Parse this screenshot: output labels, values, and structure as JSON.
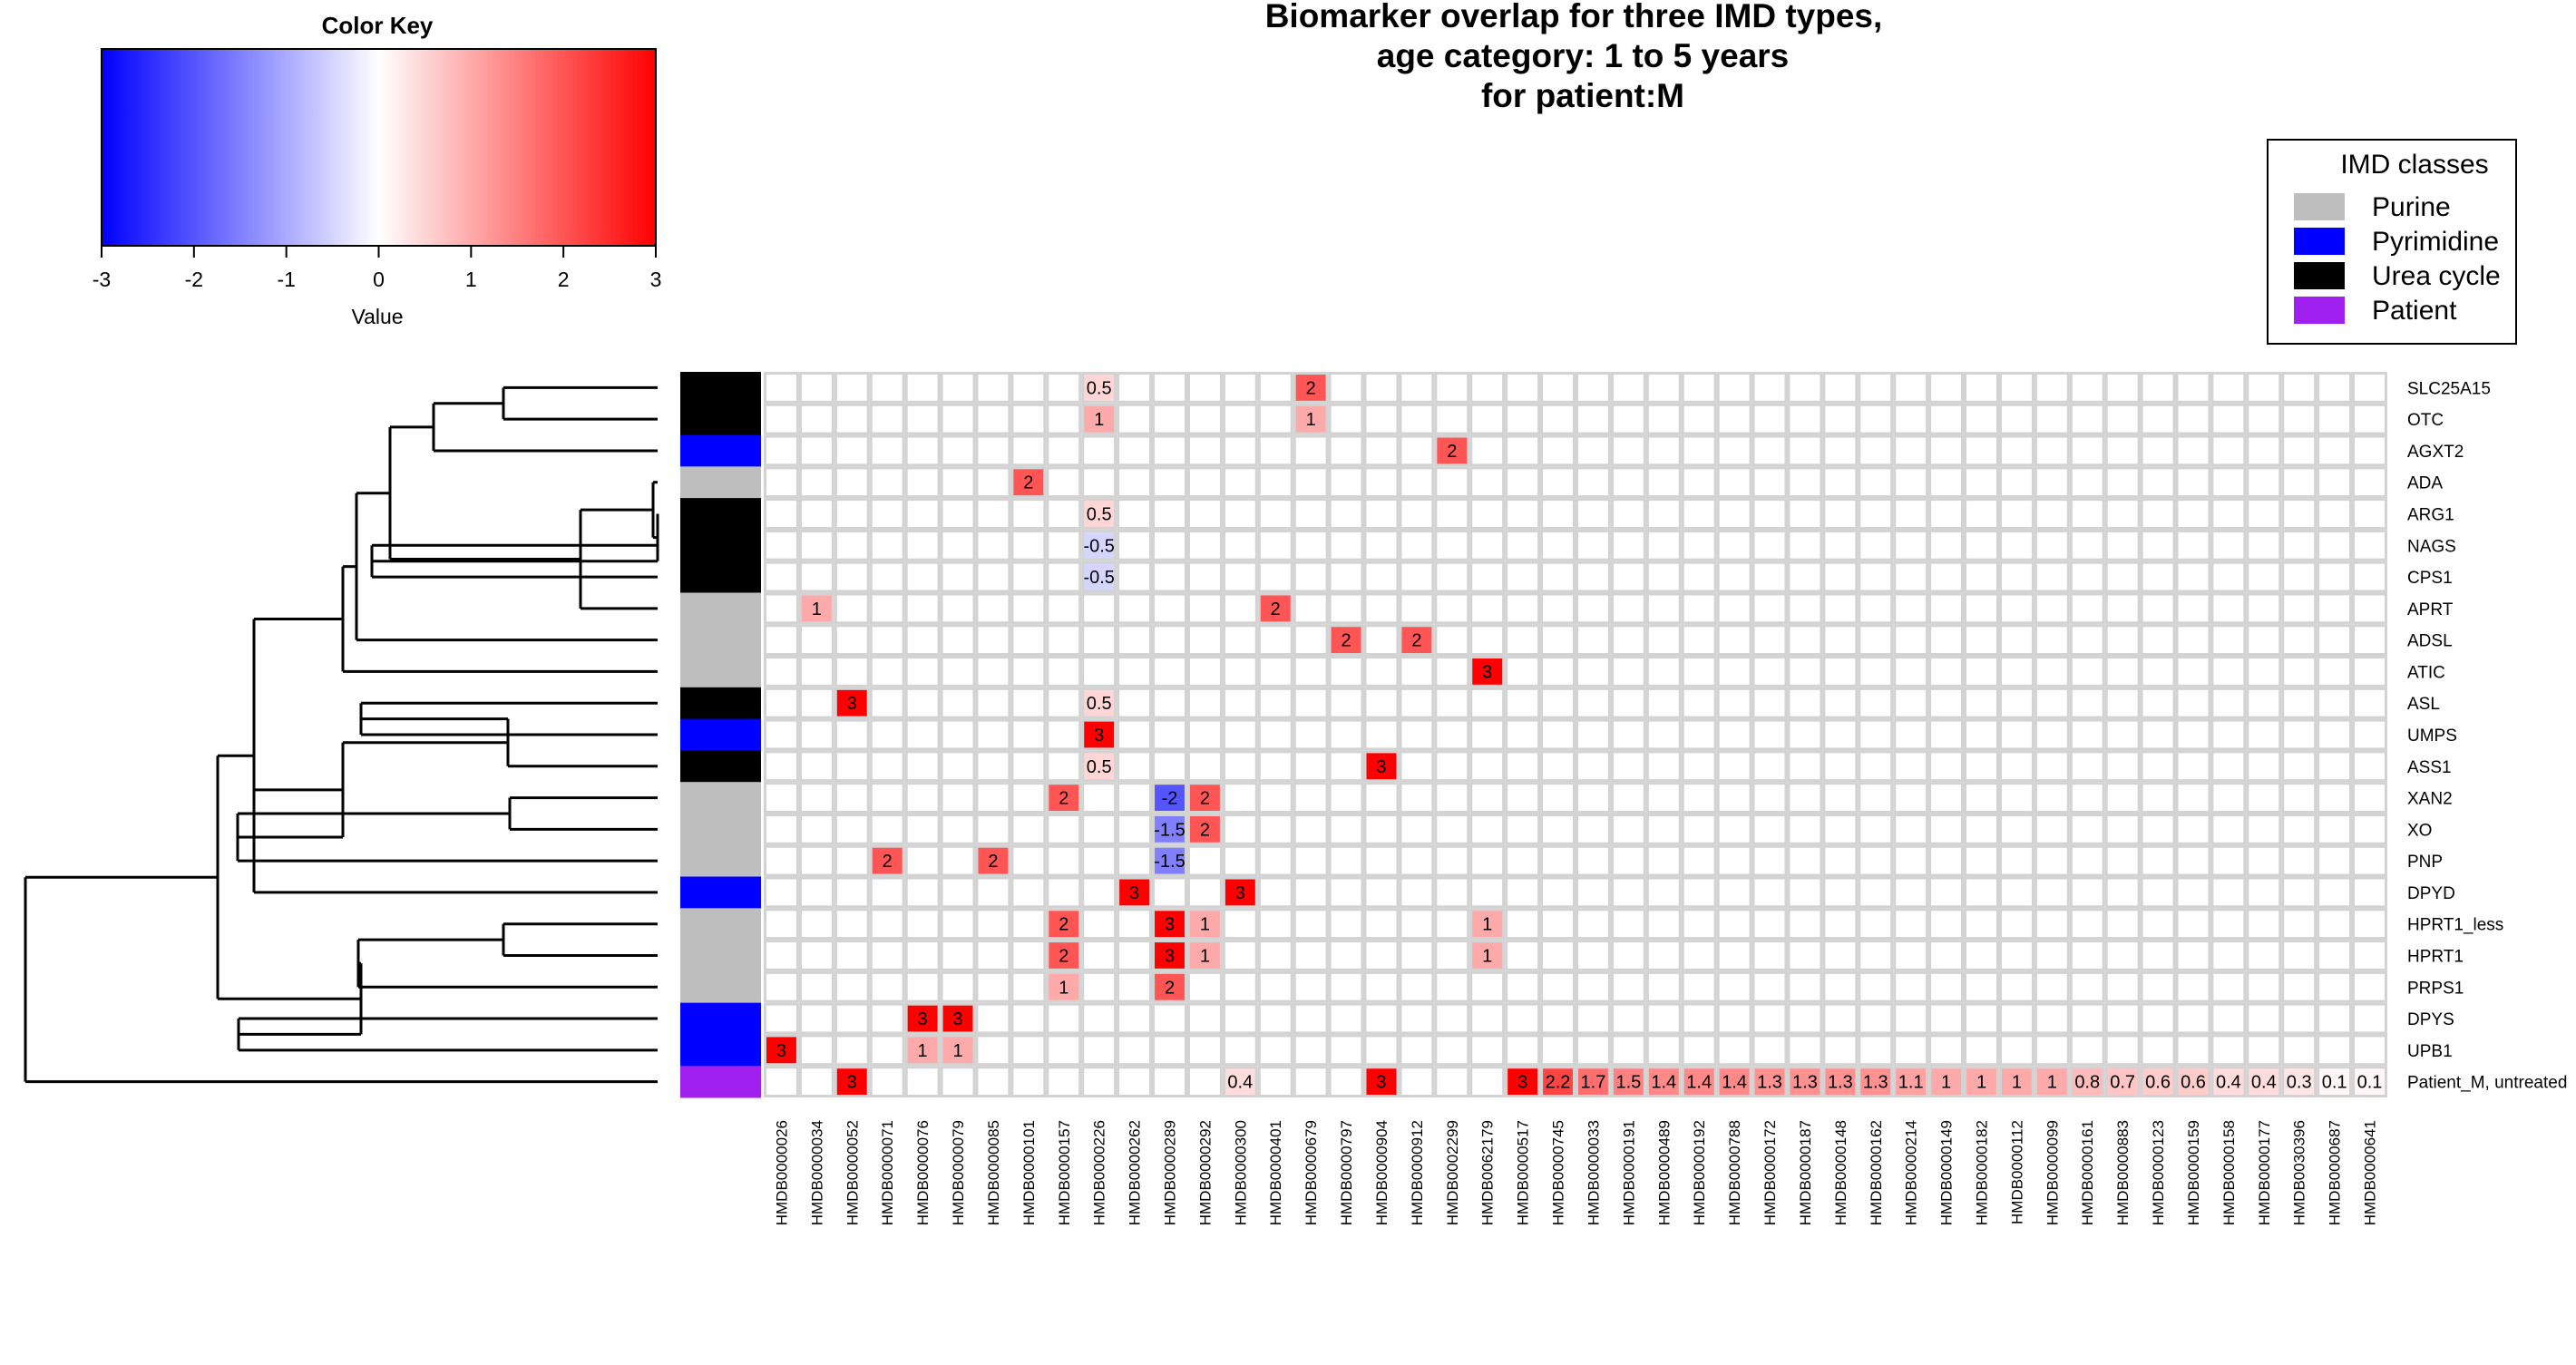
{
  "chart_data": {
    "type": "heatmap",
    "title_lines": [
      "Biomarker overlap for three IMD types,",
      "age category: 1 to 5 years",
      "for patient:M"
    ],
    "color_key": {
      "title": "Color Key",
      "xlabel": "Value",
      "range": [
        -3,
        3
      ],
      "ticks": [
        "-3",
        "-2",
        "-1",
        "0",
        "1",
        "2",
        "3"
      ],
      "low_color": "#0000FF",
      "mid_color": "#FFFFFF",
      "high_color": "#FF0000"
    },
    "legend": {
      "title": "IMD classes",
      "placement": "top-right",
      "items": [
        {
          "label": "Purine",
          "color": "#BEBEBE"
        },
        {
          "label": "Pyrimidine",
          "color": "#0000FF"
        },
        {
          "label": "Urea cycle",
          "color": "#000000"
        },
        {
          "label": "Patient",
          "color": "#A020F0"
        }
      ]
    },
    "rows": [
      {
        "label": "SLC25A15",
        "class": "Urea cycle"
      },
      {
        "label": "OTC",
        "class": "Urea cycle"
      },
      {
        "label": "AGXT2",
        "class": "Pyrimidine"
      },
      {
        "label": "ADA",
        "class": "Purine"
      },
      {
        "label": "ARG1",
        "class": "Urea cycle"
      },
      {
        "label": "NAGS",
        "class": "Urea cycle"
      },
      {
        "label": "CPS1",
        "class": "Urea cycle"
      },
      {
        "label": "APRT",
        "class": "Purine"
      },
      {
        "label": "ADSL",
        "class": "Purine"
      },
      {
        "label": "ATIC",
        "class": "Purine"
      },
      {
        "label": "ASL",
        "class": "Urea cycle"
      },
      {
        "label": "UMPS",
        "class": "Pyrimidine"
      },
      {
        "label": "ASS1",
        "class": "Urea cycle"
      },
      {
        "label": "XAN2",
        "class": "Purine"
      },
      {
        "label": "XO",
        "class": "Purine"
      },
      {
        "label": "PNP",
        "class": "Purine"
      },
      {
        "label": "DPYD",
        "class": "Pyrimidine"
      },
      {
        "label": "HPRT1_less",
        "class": "Purine"
      },
      {
        "label": "HPRT1",
        "class": "Purine"
      },
      {
        "label": "PRPS1",
        "class": "Purine"
      },
      {
        "label": "DPYS",
        "class": "Pyrimidine"
      },
      {
        "label": "UPB1",
        "class": "Pyrimidine"
      },
      {
        "label": "Patient_M, untreated",
        "class": "Patient"
      }
    ],
    "columns": [
      "HMDB0000026",
      "HMDB0000034",
      "HMDB0000052",
      "HMDB0000071",
      "HMDB0000076",
      "HMDB0000079",
      "HMDB0000085",
      "HMDB0000101",
      "HMDB0000157",
      "HMDB0000226",
      "HMDB0000262",
      "HMDB0000289",
      "HMDB0000292",
      "HMDB0000300",
      "HMDB0000401",
      "HMDB0000679",
      "HMDB0000797",
      "HMDB0000904",
      "HMDB0000912",
      "HMDB0002299",
      "HMDB0062179",
      "HMDB0000517",
      "HMDB0000745",
      "HMDB0000033",
      "HMDB0000191",
      "HMDB0000489",
      "HMDB0000192",
      "HMDB0000788",
      "HMDB0000172",
      "HMDB0000187",
      "HMDB0000148",
      "HMDB0000162",
      "HMDB0000214",
      "HMDB0000149",
      "HMDB0000182",
      "HMDB0000112",
      "HMDB0000099",
      "HMDB0000161",
      "HMDB0000883",
      "HMDB0000123",
      "HMDB0000159",
      "HMDB0000158",
      "HMDB0000177",
      "HMDB0030396",
      "HMDB0000687",
      "HMDB0000641"
    ],
    "cells": [
      {
        "row": 0,
        "col": 9,
        "value": 0.5,
        "label": "0.5"
      },
      {
        "row": 0,
        "col": 15,
        "value": 2,
        "label": "2"
      },
      {
        "row": 1,
        "col": 9,
        "value": 1,
        "label": "1"
      },
      {
        "row": 1,
        "col": 15,
        "value": 1,
        "label": "1"
      },
      {
        "row": 2,
        "col": 19,
        "value": 2,
        "label": "2"
      },
      {
        "row": 3,
        "col": 7,
        "value": 2,
        "label": "2"
      },
      {
        "row": 4,
        "col": 9,
        "value": 0.5,
        "label": "0.5"
      },
      {
        "row": 5,
        "col": 9,
        "value": -0.5,
        "label": "-0.5"
      },
      {
        "row": 6,
        "col": 9,
        "value": -0.5,
        "label": "-0.5"
      },
      {
        "row": 7,
        "col": 1,
        "value": 1,
        "label": "1"
      },
      {
        "row": 7,
        "col": 14,
        "value": 2,
        "label": "2"
      },
      {
        "row": 8,
        "col": 16,
        "value": 2,
        "label": "2"
      },
      {
        "row": 8,
        "col": 18,
        "value": 2,
        "label": "2"
      },
      {
        "row": 9,
        "col": 20,
        "value": 3,
        "label": "3"
      },
      {
        "row": 10,
        "col": 2,
        "value": 3,
        "label": "3"
      },
      {
        "row": 10,
        "col": 9,
        "value": 0.5,
        "label": "0.5"
      },
      {
        "row": 11,
        "col": 9,
        "value": 3,
        "label": "3"
      },
      {
        "row": 12,
        "col": 9,
        "value": 0.5,
        "label": "0.5"
      },
      {
        "row": 12,
        "col": 17,
        "value": 3,
        "label": "3"
      },
      {
        "row": 13,
        "col": 8,
        "value": 2,
        "label": "2"
      },
      {
        "row": 13,
        "col": 11,
        "value": -2,
        "label": "-2"
      },
      {
        "row": 13,
        "col": 12,
        "value": 2,
        "label": "2"
      },
      {
        "row": 14,
        "col": 11,
        "value": -1.5,
        "label": "-1.5"
      },
      {
        "row": 14,
        "col": 12,
        "value": 2,
        "label": "2"
      },
      {
        "row": 15,
        "col": 3,
        "value": 2,
        "label": "2"
      },
      {
        "row": 15,
        "col": 6,
        "value": 2,
        "label": "2"
      },
      {
        "row": 15,
        "col": 11,
        "value": -1.5,
        "label": "-1.5"
      },
      {
        "row": 16,
        "col": 10,
        "value": 3,
        "label": "3"
      },
      {
        "row": 16,
        "col": 13,
        "value": 3,
        "label": "3"
      },
      {
        "row": 17,
        "col": 8,
        "value": 2,
        "label": "2"
      },
      {
        "row": 17,
        "col": 11,
        "value": 3,
        "label": "3"
      },
      {
        "row": 17,
        "col": 12,
        "value": 1,
        "label": "1"
      },
      {
        "row": 17,
        "col": 20,
        "value": 1,
        "label": "1"
      },
      {
        "row": 18,
        "col": 8,
        "value": 2,
        "label": "2"
      },
      {
        "row": 18,
        "col": 11,
        "value": 3,
        "label": "3"
      },
      {
        "row": 18,
        "col": 12,
        "value": 1,
        "label": "1"
      },
      {
        "row": 18,
        "col": 20,
        "value": 1,
        "label": "1"
      },
      {
        "row": 19,
        "col": 8,
        "value": 1,
        "label": "1"
      },
      {
        "row": 19,
        "col": 11,
        "value": 2,
        "label": "2"
      },
      {
        "row": 20,
        "col": 4,
        "value": 3,
        "label": "3"
      },
      {
        "row": 20,
        "col": 5,
        "value": 3,
        "label": "3"
      },
      {
        "row": 21,
        "col": 0,
        "value": 3,
        "label": "3"
      },
      {
        "row": 21,
        "col": 4,
        "value": 1,
        "label": "1"
      },
      {
        "row": 21,
        "col": 5,
        "value": 1,
        "label": "1"
      },
      {
        "row": 22,
        "col": 2,
        "value": 3,
        "label": "3"
      },
      {
        "row": 22,
        "col": 13,
        "value": 0.4,
        "label": "0.4"
      },
      {
        "row": 22,
        "col": 17,
        "value": 3,
        "label": "3"
      },
      {
        "row": 22,
        "col": 21,
        "value": 3,
        "label": "3"
      },
      {
        "row": 22,
        "col": 22,
        "value": 2.2,
        "label": "2.2"
      },
      {
        "row": 22,
        "col": 23,
        "value": 1.7,
        "label": "1.7"
      },
      {
        "row": 22,
        "col": 24,
        "value": 1.5,
        "label": "1.5"
      },
      {
        "row": 22,
        "col": 25,
        "value": 1.4,
        "label": "1.4"
      },
      {
        "row": 22,
        "col": 26,
        "value": 1.4,
        "label": "1.4"
      },
      {
        "row": 22,
        "col": 27,
        "value": 1.4,
        "label": "1.4"
      },
      {
        "row": 22,
        "col": 28,
        "value": 1.3,
        "label": "1.3"
      },
      {
        "row": 22,
        "col": 29,
        "value": 1.3,
        "label": "1.3"
      },
      {
        "row": 22,
        "col": 30,
        "value": 1.3,
        "label": "1.3"
      },
      {
        "row": 22,
        "col": 31,
        "value": 1.3,
        "label": "1.3"
      },
      {
        "row": 22,
        "col": 32,
        "value": 1.1,
        "label": "1.1"
      },
      {
        "row": 22,
        "col": 33,
        "value": 1,
        "label": "1"
      },
      {
        "row": 22,
        "col": 34,
        "value": 1,
        "label": "1"
      },
      {
        "row": 22,
        "col": 35,
        "value": 1,
        "label": "1"
      },
      {
        "row": 22,
        "col": 36,
        "value": 1,
        "label": "1"
      },
      {
        "row": 22,
        "col": 37,
        "value": 0.8,
        "label": "0.8"
      },
      {
        "row": 22,
        "col": 38,
        "value": 0.7,
        "label": "0.7"
      },
      {
        "row": 22,
        "col": 39,
        "value": 0.6,
        "label": "0.6"
      },
      {
        "row": 22,
        "col": 40,
        "value": 0.6,
        "label": "0.6"
      },
      {
        "row": 22,
        "col": 41,
        "value": 0.4,
        "label": "0.4"
      },
      {
        "row": 22,
        "col": 42,
        "value": 0.4,
        "label": "0.4"
      },
      {
        "row": 22,
        "col": 43,
        "value": 0.3,
        "label": "0.3"
      },
      {
        "row": 22,
        "col": 44,
        "value": 0.1,
        "label": "0.1"
      },
      {
        "row": 22,
        "col": 45,
        "value": 0.1,
        "label": "0.1"
      }
    ],
    "dendrogram": {
      "tree": [
        [
          [
            [
              [
                [
                  "SLC25A15",
                  "OTC"
                ],
                "AGXT2"
              ],
              [
                [
                  "ADA",
                  [
                    "ARG1",
                    [
                      "NAGS",
                      "CPS1"
                    ]
                  ]
                ],
                "APRT"
              ]
            ],
            "ADSL"
          ],
          "ATIC"
        ],
        [
          [
            [
              "ASL",
              "UMPS"
            ],
            "ASS1"
          ],
          [
            [
              "XAN2",
              "XO"
            ],
            "PNP"
          ]
        ],
        "DPYD"
      ],
      "extra": {}
    }
  }
}
